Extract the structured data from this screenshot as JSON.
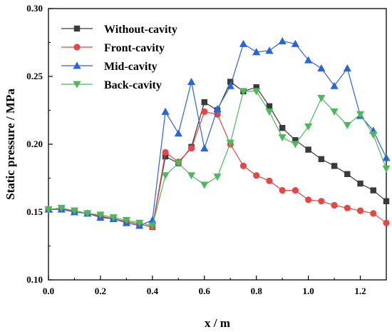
{
  "chart_data": {
    "type": "line",
    "xlabel": "x / m",
    "ylabel": "Static pressure / MPa",
    "xlim": [
      0.0,
      1.3
    ],
    "ylim": [
      0.1,
      0.3
    ],
    "xticks": [
      "0.0",
      "0.2",
      "0.4",
      "0.6",
      "0.8",
      "1.0",
      "1.2"
    ],
    "yticks": [
      "0.10",
      "0.15",
      "0.20",
      "0.25",
      "0.30"
    ],
    "grid": false,
    "legend_position": "top-left",
    "x": [
      0.0,
      0.05,
      0.1,
      0.15,
      0.2,
      0.25,
      0.3,
      0.35,
      0.4,
      0.45,
      0.5,
      0.55,
      0.6,
      0.65,
      0.7,
      0.75,
      0.8,
      0.85,
      0.9,
      0.95,
      1.0,
      1.05,
      1.1,
      1.15,
      1.2,
      1.25,
      1.3
    ],
    "series": [
      {
        "name": "Without-cavity",
        "color": "#3a3a3a",
        "marker": "square",
        "values": [
          0.152,
          0.152,
          0.151,
          0.149,
          0.147,
          0.145,
          0.143,
          0.141,
          0.139,
          0.191,
          0.186,
          0.198,
          0.231,
          0.225,
          0.246,
          0.239,
          0.242,
          0.228,
          0.212,
          0.203,
          0.196,
          0.189,
          0.184,
          0.178,
          0.171,
          0.166,
          0.158
        ]
      },
      {
        "name": "Front-cavity",
        "color": "#e64646",
        "marker": "circle",
        "values": [
          0.152,
          0.152,
          0.151,
          0.149,
          0.147,
          0.145,
          0.143,
          0.141,
          0.139,
          0.194,
          0.187,
          0.197,
          0.224,
          0.222,
          0.2,
          0.184,
          0.177,
          0.173,
          0.166,
          0.166,
          0.159,
          0.158,
          0.155,
          0.153,
          0.151,
          0.149,
          0.142
        ]
      },
      {
        "name": "Mid-cavity",
        "color": "#2a65d6",
        "marker": "triangle-up",
        "values": [
          0.152,
          0.152,
          0.15,
          0.149,
          0.146,
          0.145,
          0.142,
          0.14,
          0.144,
          0.224,
          0.208,
          0.246,
          0.197,
          0.226,
          0.243,
          0.274,
          0.268,
          0.269,
          0.276,
          0.274,
          0.262,
          0.256,
          0.243,
          0.256,
          0.221,
          0.21,
          0.19
        ]
      },
      {
        "name": "Back-cavity",
        "color": "#4fb85c",
        "marker": "triangle-down",
        "values": [
          0.152,
          0.153,
          0.151,
          0.149,
          0.148,
          0.146,
          0.144,
          0.142,
          0.14,
          0.177,
          0.186,
          0.177,
          0.17,
          0.176,
          0.201,
          0.239,
          0.239,
          0.224,
          0.205,
          0.2,
          0.213,
          0.234,
          0.224,
          0.214,
          0.222,
          0.207,
          0.182
        ]
      }
    ]
  }
}
